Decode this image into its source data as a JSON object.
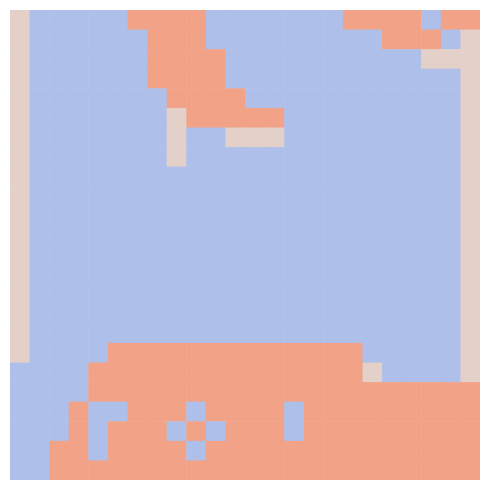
{
  "chart_data": {
    "type": "heatmap",
    "tick_labels": false,
    "xlim": [
      0,
      24
    ],
    "ylim": [
      0,
      24
    ],
    "zlim": [
      0,
      1
    ],
    "z": [
      [
        0.55,
        0.38,
        0.38,
        0.38,
        0.38,
        0.38,
        0.72,
        0.72,
        0.72,
        0.72,
        0.38,
        0.38,
        0.38,
        0.38,
        0.38,
        0.38,
        0.38,
        0.72,
        0.72,
        0.72,
        0.72,
        0.38,
        0.72,
        0.72
      ],
      [
        0.55,
        0.38,
        0.38,
        0.38,
        0.38,
        0.38,
        0.38,
        0.72,
        0.72,
        0.72,
        0.38,
        0.38,
        0.38,
        0.38,
        0.38,
        0.38,
        0.38,
        0.38,
        0.38,
        0.72,
        0.72,
        0.72,
        0.38,
        0.55
      ],
      [
        0.55,
        0.38,
        0.38,
        0.38,
        0.38,
        0.38,
        0.38,
        0.72,
        0.72,
        0.72,
        0.72,
        0.38,
        0.38,
        0.38,
        0.38,
        0.38,
        0.38,
        0.38,
        0.38,
        0.38,
        0.38,
        0.55,
        0.55,
        0.55
      ],
      [
        0.55,
        0.38,
        0.38,
        0.38,
        0.38,
        0.38,
        0.38,
        0.72,
        0.72,
        0.72,
        0.72,
        0.38,
        0.38,
        0.38,
        0.38,
        0.38,
        0.38,
        0.38,
        0.38,
        0.38,
        0.38,
        0.38,
        0.38,
        0.55
      ],
      [
        0.55,
        0.38,
        0.38,
        0.38,
        0.38,
        0.38,
        0.38,
        0.38,
        0.72,
        0.72,
        0.72,
        0.72,
        0.38,
        0.38,
        0.38,
        0.38,
        0.38,
        0.38,
        0.38,
        0.38,
        0.38,
        0.38,
        0.38,
        0.55
      ],
      [
        0.55,
        0.38,
        0.38,
        0.38,
        0.38,
        0.38,
        0.38,
        0.38,
        0.55,
        0.72,
        0.72,
        0.72,
        0.72,
        0.72,
        0.38,
        0.38,
        0.38,
        0.38,
        0.38,
        0.38,
        0.38,
        0.38,
        0.38,
        0.55
      ],
      [
        0.55,
        0.38,
        0.38,
        0.38,
        0.38,
        0.38,
        0.38,
        0.38,
        0.55,
        0.38,
        0.38,
        0.55,
        0.55,
        0.55,
        0.38,
        0.38,
        0.38,
        0.38,
        0.38,
        0.38,
        0.38,
        0.38,
        0.38,
        0.55
      ],
      [
        0.55,
        0.38,
        0.38,
        0.38,
        0.38,
        0.38,
        0.38,
        0.38,
        0.55,
        0.38,
        0.38,
        0.38,
        0.38,
        0.38,
        0.38,
        0.38,
        0.38,
        0.38,
        0.38,
        0.38,
        0.38,
        0.38,
        0.38,
        0.55
      ],
      [
        0.55,
        0.38,
        0.38,
        0.38,
        0.38,
        0.38,
        0.38,
        0.38,
        0.38,
        0.38,
        0.38,
        0.38,
        0.38,
        0.38,
        0.38,
        0.38,
        0.38,
        0.38,
        0.38,
        0.38,
        0.38,
        0.38,
        0.38,
        0.55
      ],
      [
        0.55,
        0.38,
        0.38,
        0.38,
        0.38,
        0.38,
        0.38,
        0.38,
        0.38,
        0.38,
        0.38,
        0.38,
        0.38,
        0.38,
        0.38,
        0.38,
        0.38,
        0.38,
        0.38,
        0.38,
        0.38,
        0.38,
        0.38,
        0.55
      ],
      [
        0.55,
        0.38,
        0.38,
        0.38,
        0.38,
        0.38,
        0.38,
        0.38,
        0.38,
        0.38,
        0.38,
        0.38,
        0.38,
        0.38,
        0.38,
        0.38,
        0.38,
        0.38,
        0.38,
        0.38,
        0.38,
        0.38,
        0.38,
        0.55
      ],
      [
        0.55,
        0.38,
        0.38,
        0.38,
        0.38,
        0.38,
        0.38,
        0.38,
        0.38,
        0.38,
        0.38,
        0.38,
        0.38,
        0.38,
        0.38,
        0.38,
        0.38,
        0.38,
        0.38,
        0.38,
        0.38,
        0.38,
        0.38,
        0.55
      ],
      [
        0.55,
        0.38,
        0.38,
        0.38,
        0.38,
        0.38,
        0.38,
        0.38,
        0.38,
        0.38,
        0.38,
        0.38,
        0.38,
        0.38,
        0.38,
        0.38,
        0.38,
        0.38,
        0.38,
        0.38,
        0.38,
        0.38,
        0.38,
        0.55
      ],
      [
        0.55,
        0.38,
        0.38,
        0.38,
        0.38,
        0.38,
        0.38,
        0.38,
        0.38,
        0.38,
        0.38,
        0.38,
        0.38,
        0.38,
        0.38,
        0.38,
        0.38,
        0.38,
        0.38,
        0.38,
        0.38,
        0.38,
        0.38,
        0.55
      ],
      [
        0.55,
        0.38,
        0.38,
        0.38,
        0.38,
        0.38,
        0.38,
        0.38,
        0.38,
        0.38,
        0.38,
        0.38,
        0.38,
        0.38,
        0.38,
        0.38,
        0.38,
        0.38,
        0.38,
        0.38,
        0.38,
        0.38,
        0.38,
        0.55
      ],
      [
        0.55,
        0.38,
        0.38,
        0.38,
        0.38,
        0.38,
        0.38,
        0.38,
        0.38,
        0.38,
        0.38,
        0.38,
        0.38,
        0.38,
        0.38,
        0.38,
        0.38,
        0.38,
        0.38,
        0.38,
        0.38,
        0.38,
        0.38,
        0.55
      ],
      [
        0.55,
        0.38,
        0.38,
        0.38,
        0.38,
        0.38,
        0.38,
        0.38,
        0.38,
        0.38,
        0.38,
        0.38,
        0.38,
        0.38,
        0.38,
        0.38,
        0.38,
        0.38,
        0.38,
        0.38,
        0.38,
        0.38,
        0.38,
        0.55
      ],
      [
        0.55,
        0.38,
        0.38,
        0.38,
        0.38,
        0.72,
        0.72,
        0.72,
        0.72,
        0.72,
        0.72,
        0.72,
        0.72,
        0.72,
        0.72,
        0.72,
        0.72,
        0.72,
        0.38,
        0.38,
        0.38,
        0.38,
        0.38,
        0.55
      ],
      [
        0.38,
        0.38,
        0.38,
        0.38,
        0.72,
        0.72,
        0.72,
        0.72,
        0.72,
        0.72,
        0.72,
        0.72,
        0.72,
        0.72,
        0.72,
        0.72,
        0.72,
        0.72,
        0.55,
        0.38,
        0.38,
        0.38,
        0.38,
        0.55
      ],
      [
        0.38,
        0.38,
        0.38,
        0.38,
        0.72,
        0.72,
        0.72,
        0.72,
        0.72,
        0.72,
        0.72,
        0.72,
        0.72,
        0.72,
        0.72,
        0.72,
        0.72,
        0.72,
        0.72,
        0.72,
        0.72,
        0.72,
        0.72,
        0.72
      ],
      [
        0.38,
        0.38,
        0.38,
        0.72,
        0.38,
        0.38,
        0.72,
        0.72,
        0.72,
        0.38,
        0.72,
        0.72,
        0.72,
        0.72,
        0.38,
        0.72,
        0.72,
        0.72,
        0.72,
        0.72,
        0.72,
        0.72,
        0.72,
        0.72
      ],
      [
        0.38,
        0.38,
        0.38,
        0.72,
        0.38,
        0.72,
        0.72,
        0.72,
        0.38,
        0.72,
        0.38,
        0.72,
        0.72,
        0.72,
        0.38,
        0.72,
        0.72,
        0.72,
        0.72,
        0.72,
        0.72,
        0.72,
        0.72,
        0.72
      ],
      [
        0.38,
        0.38,
        0.72,
        0.72,
        0.38,
        0.72,
        0.72,
        0.72,
        0.72,
        0.38,
        0.72,
        0.72,
        0.72,
        0.72,
        0.72,
        0.72,
        0.72,
        0.72,
        0.72,
        0.72,
        0.72,
        0.72,
        0.72,
        0.72
      ],
      [
        0.38,
        0.38,
        0.72,
        0.72,
        0.72,
        0.72,
        0.72,
        0.72,
        0.72,
        0.72,
        0.72,
        0.72,
        0.72,
        0.72,
        0.72,
        0.72,
        0.72,
        0.72,
        0.72,
        0.72,
        0.72,
        0.72,
        0.72,
        0.72
      ]
    ]
  }
}
